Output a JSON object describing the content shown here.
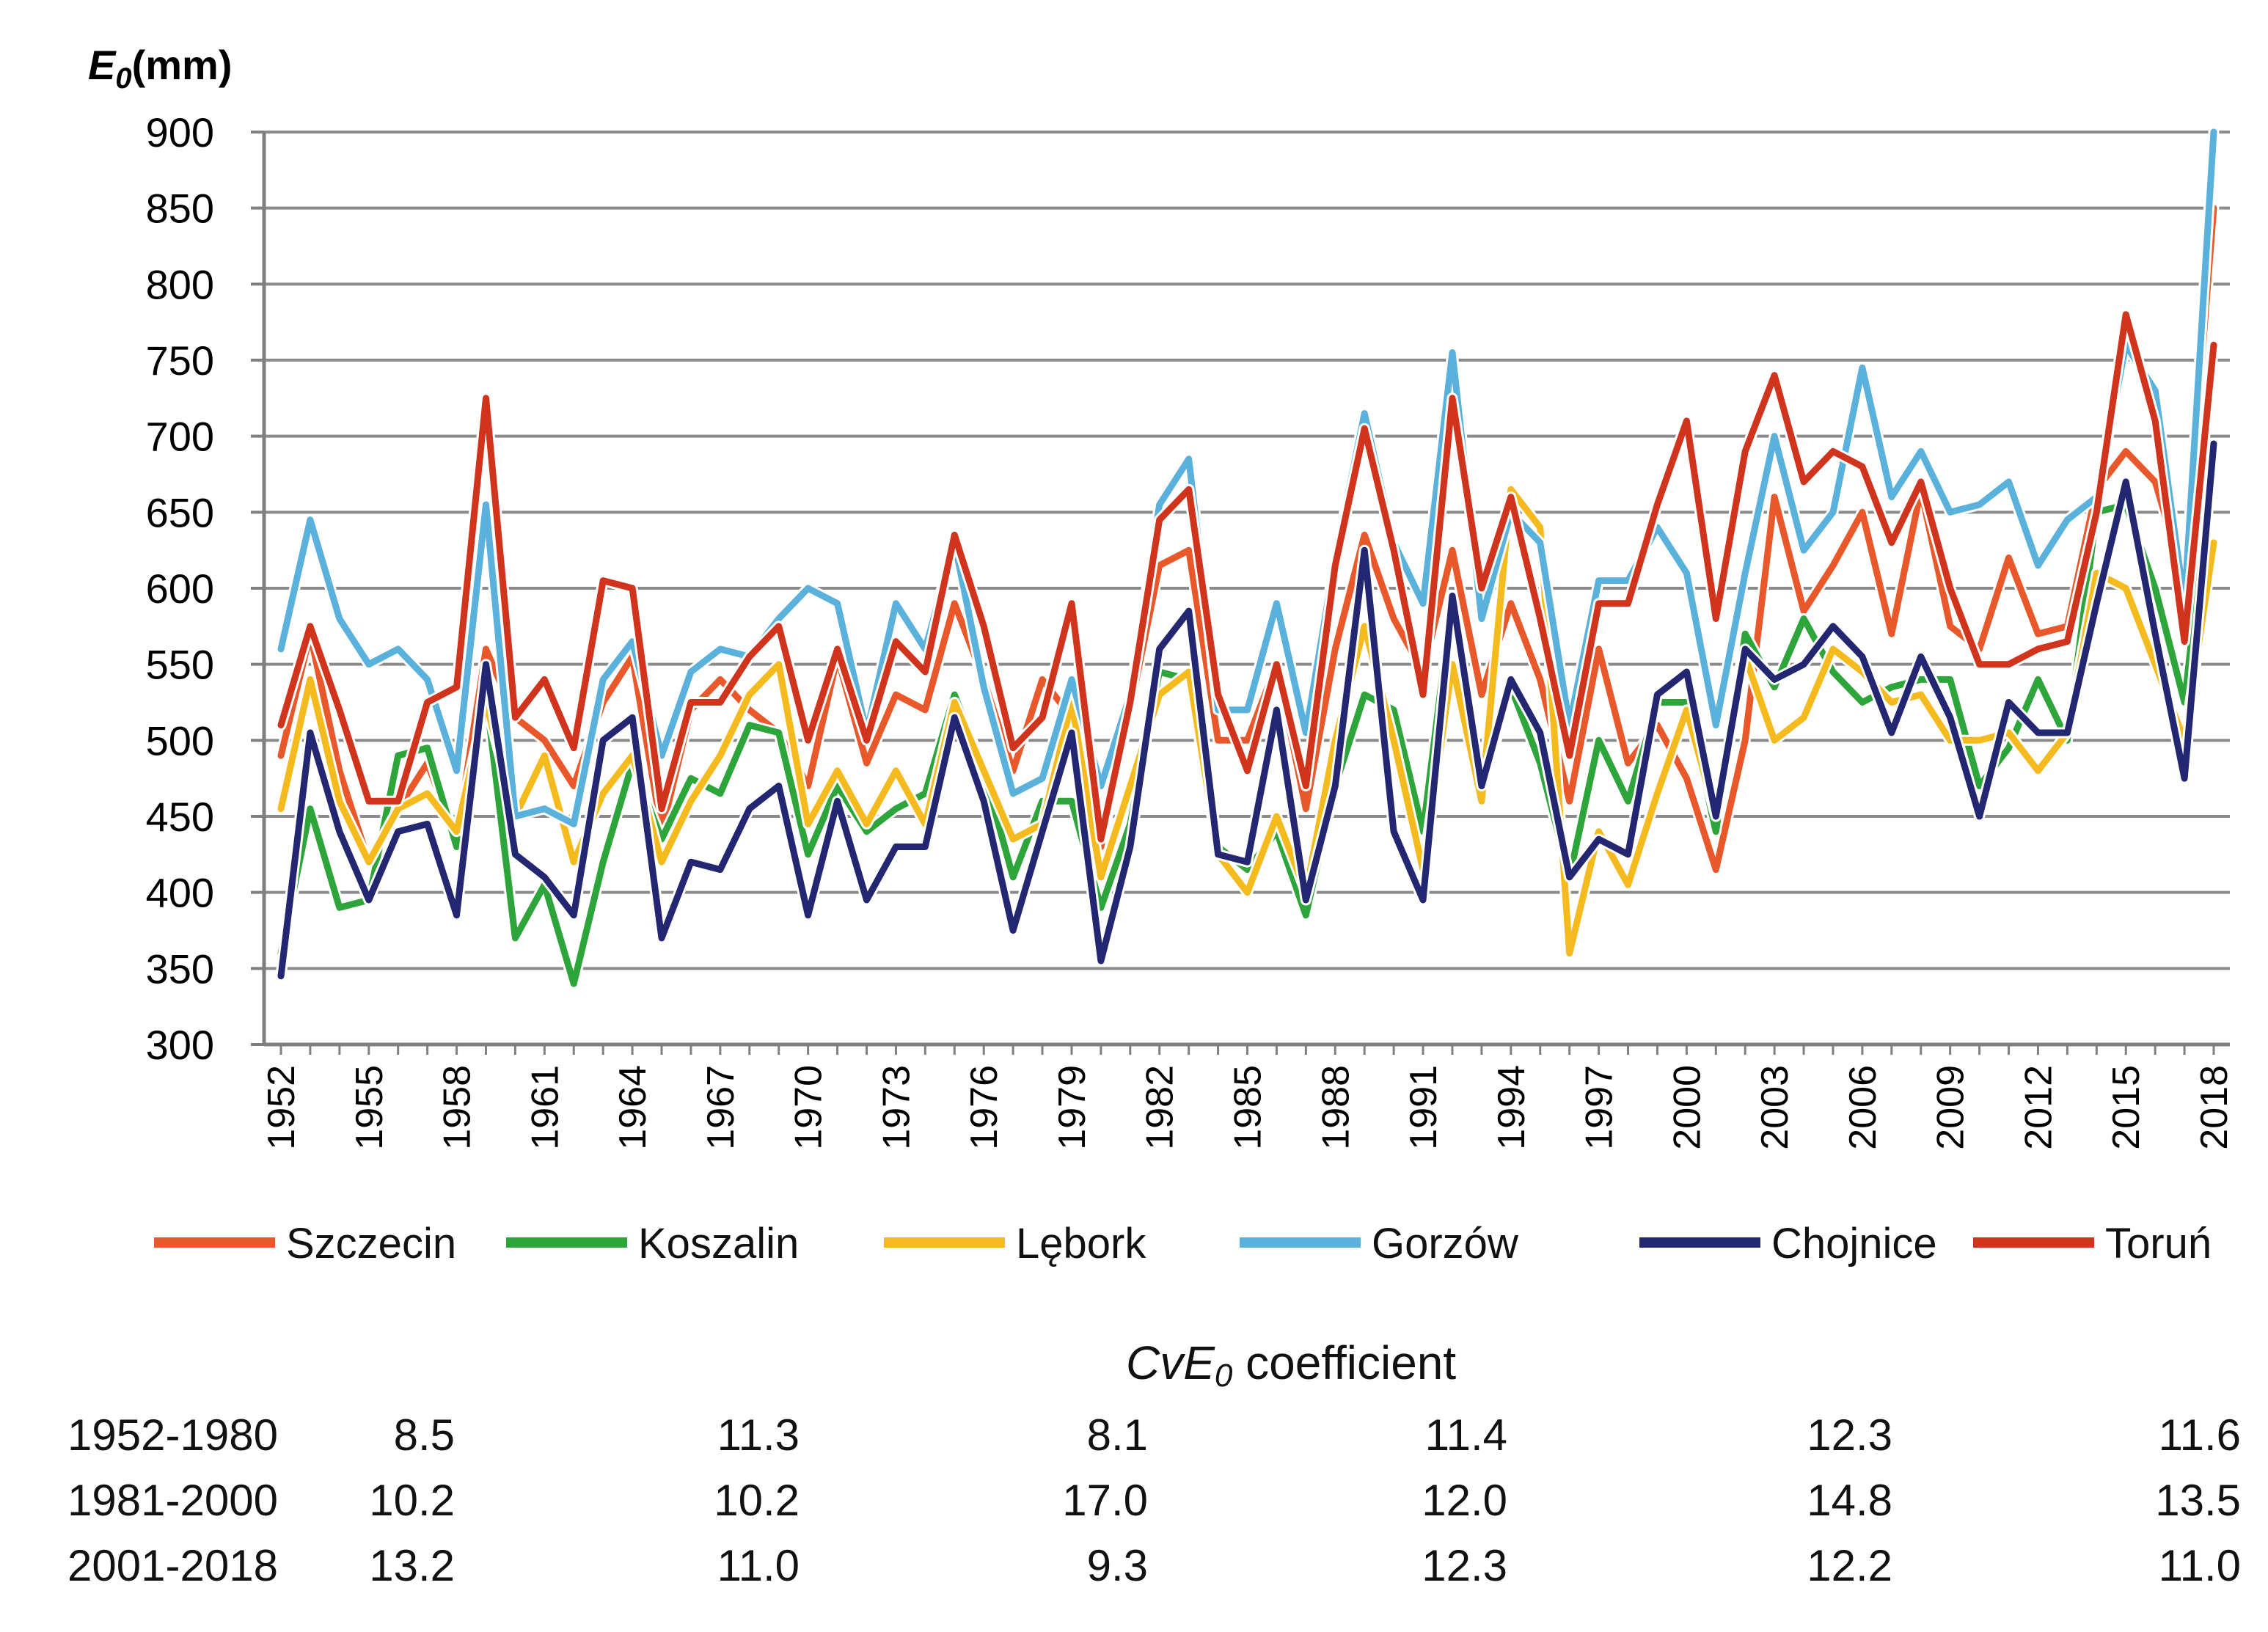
{
  "chart_data": {
    "type": "line",
    "ylabel": "(mm)",
    "ylabel_symbol": "E",
    "ylabel_subscript": "0",
    "ylim": [
      300,
      900
    ],
    "yticks": [
      300,
      350,
      400,
      450,
      500,
      550,
      600,
      650,
      700,
      750,
      800,
      850,
      900
    ],
    "x": [
      1952,
      1953,
      1954,
      1955,
      1956,
      1957,
      1958,
      1959,
      1960,
      1961,
      1962,
      1963,
      1964,
      1965,
      1966,
      1967,
      1968,
      1969,
      1970,
      1971,
      1972,
      1973,
      1974,
      1975,
      1976,
      1977,
      1978,
      1979,
      1980,
      1981,
      1982,
      1983,
      1984,
      1985,
      1986,
      1987,
      1988,
      1989,
      1990,
      1991,
      1992,
      1993,
      1994,
      1995,
      1996,
      1997,
      1998,
      1999,
      2000,
      2001,
      2002,
      2003,
      2004,
      2005,
      2006,
      2007,
      2008,
      2009,
      2010,
      2011,
      2012,
      2013,
      2014,
      2015,
      2016,
      2017,
      2018
    ],
    "xticks": [
      "1952",
      "1955",
      "1958",
      "1961",
      "1964",
      "1967",
      "1970",
      "1973",
      "1976",
      "1979",
      "1982",
      "1985",
      "1988",
      "1991",
      "1994",
      "1997",
      "2000",
      "2003",
      "2006",
      "2009",
      "2012",
      "2015",
      "2018"
    ],
    "series": [
      {
        "name": "Szczecin",
        "color": "#E8582A",
        "values": [
          490,
          570,
          480,
          420,
          455,
          485,
          435,
          560,
          515,
          500,
          470,
          525,
          555,
          440,
          520,
          540,
          520,
          505,
          470,
          555,
          485,
          530,
          520,
          590,
          540,
          480,
          540,
          515,
          430,
          520,
          615,
          625,
          500,
          500,
          550,
          455,
          560,
          635,
          580,
          545,
          625,
          530,
          590,
          540,
          460,
          560,
          485,
          510,
          475,
          415,
          500,
          660,
          585,
          615,
          650,
          570,
          665,
          575,
          560,
          620,
          570,
          575,
          665,
          690,
          670,
          605,
          850
        ]
      },
      {
        "name": "Koszalin",
        "color": "#2EA53A",
        "values": [
          360,
          455,
          390,
          395,
          490,
          495,
          430,
          530,
          370,
          405,
          340,
          420,
          485,
          435,
          475,
          465,
          510,
          505,
          425,
          470,
          440,
          455,
          465,
          530,
          480,
          410,
          460,
          460,
          390,
          445,
          545,
          540,
          430,
          415,
          440,
          385,
          470,
          530,
          520,
          440,
          595,
          465,
          535,
          485,
          410,
          500,
          460,
          525,
          525,
          440,
          570,
          535,
          580,
          545,
          525,
          535,
          540,
          540,
          470,
          495,
          540,
          500,
          650,
          655,
          600,
          525,
          695
        ]
      },
      {
        "name": "Lębork",
        "color": "#F4BA1E",
        "values": [
          455,
          540,
          460,
          420,
          455,
          465,
          440,
          525,
          450,
          490,
          420,
          465,
          490,
          420,
          460,
          490,
          530,
          550,
          445,
          480,
          445,
          480,
          445,
          525,
          480,
          435,
          445,
          525,
          410,
          470,
          530,
          545,
          425,
          400,
          450,
          400,
          500,
          575,
          500,
          415,
          550,
          460,
          665,
          640,
          360,
          440,
          405,
          465,
          520,
          450,
          555,
          500,
          515,
          560,
          545,
          525,
          530,
          500,
          500,
          505,
          480,
          505,
          610,
          600,
          550,
          500,
          630
        ]
      },
      {
        "name": "Gorzów",
        "color": "#5AB1DC",
        "values": [
          560,
          645,
          580,
          550,
          560,
          540,
          480,
          655,
          450,
          455,
          445,
          540,
          565,
          490,
          545,
          560,
          555,
          580,
          600,
          590,
          505,
          590,
          560,
          630,
          535,
          465,
          475,
          540,
          470,
          530,
          655,
          685,
          520,
          520,
          590,
          505,
          620,
          715,
          630,
          590,
          755,
          580,
          650,
          630,
          510,
          605,
          605,
          640,
          610,
          510,
          610,
          700,
          625,
          650,
          745,
          660,
          690,
          650,
          655,
          670,
          615,
          645,
          660,
          760,
          730,
          590,
          900
        ]
      },
      {
        "name": "Chojnice",
        "color": "#232670",
        "values": [
          345,
          505,
          440,
          395,
          440,
          445,
          385,
          550,
          425,
          410,
          385,
          500,
          515,
          370,
          420,
          415,
          455,
          470,
          385,
          460,
          395,
          430,
          430,
          515,
          460,
          375,
          440,
          505,
          355,
          430,
          560,
          585,
          425,
          420,
          520,
          395,
          470,
          625,
          440,
          395,
          595,
          470,
          540,
          505,
          410,
          435,
          425,
          530,
          545,
          450,
          560,
          540,
          550,
          575,
          555,
          505,
          555,
          515,
          450,
          525,
          505,
          505,
          590,
          670,
          570,
          475,
          695
        ]
      },
      {
        "name": "Toruń",
        "color": "#D0341C",
        "values": [
          510,
          575,
          520,
          460,
          460,
          525,
          535,
          725,
          515,
          540,
          495,
          605,
          600,
          455,
          525,
          525,
          555,
          575,
          500,
          560,
          500,
          565,
          545,
          635,
          575,
          495,
          515,
          590,
          435,
          525,
          645,
          665,
          530,
          480,
          550,
          470,
          615,
          705,
          625,
          530,
          725,
          600,
          660,
          580,
          490,
          590,
          590,
          655,
          710,
          580,
          690,
          740,
          670,
          690,
          680,
          630,
          670,
          600,
          550,
          550,
          560,
          565,
          650,
          780,
          710,
          565,
          760
        ]
      }
    ]
  },
  "cv_table": {
    "title_prefix": "CvE",
    "title_subscript": "0",
    "title_suffix": " coefficient",
    "rows": [
      {
        "period": "1952-1980",
        "values": [
          "8.5",
          "11.3",
          "8.1",
          "11.4",
          "12.3",
          "11.6"
        ]
      },
      {
        "period": "1981-2000",
        "values": [
          "10.2",
          "10.2",
          "17.0",
          "12.0",
          "14.8",
          "13.5"
        ]
      },
      {
        "period": "2001-2018",
        "values": [
          "13.2",
          "11.0",
          "9.3",
          "12.3",
          "12.2",
          "11.0"
        ]
      }
    ]
  }
}
